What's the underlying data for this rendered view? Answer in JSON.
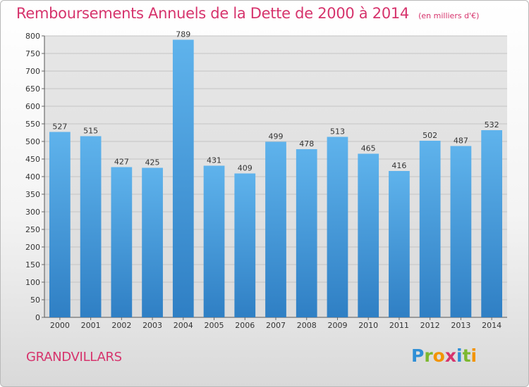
{
  "chart_data": {
    "type": "bar",
    "title": "Remboursements Annuels de la Dette de 2000 à 2014",
    "unit_note": "(en milliers d'€)",
    "categories": [
      "2000",
      "2001",
      "2002",
      "2003",
      "2004",
      "2005",
      "2006",
      "2007",
      "2008",
      "2009",
      "2010",
      "2011",
      "2012",
      "2013",
      "2014"
    ],
    "values": [
      527,
      515,
      427,
      425,
      789,
      431,
      409,
      499,
      478,
      513,
      465,
      416,
      502,
      487,
      532
    ],
    "ylim": [
      0,
      800
    ],
    "yticks": [
      0,
      50,
      100,
      150,
      200,
      250,
      300,
      350,
      400,
      450,
      500,
      550,
      600,
      650,
      700,
      750,
      800
    ],
    "xlabel": "",
    "ylabel": "",
    "grid": true,
    "bar_color": "#4a9de0",
    "title_color": "#d6336c"
  },
  "footer": {
    "city": "GRANDVILLARS",
    "logo_letters": [
      {
        "ch": "P",
        "color": "#2f8fd6"
      },
      {
        "ch": "r",
        "color": "#7cb82f"
      },
      {
        "ch": "o",
        "color": "#f29400"
      },
      {
        "ch": "x",
        "color": "#d6336c"
      },
      {
        "ch": "i",
        "color": "#2f8fd6"
      },
      {
        "ch": "t",
        "color": "#7cb82f"
      },
      {
        "ch": "i",
        "color": "#f29400"
      }
    ]
  }
}
